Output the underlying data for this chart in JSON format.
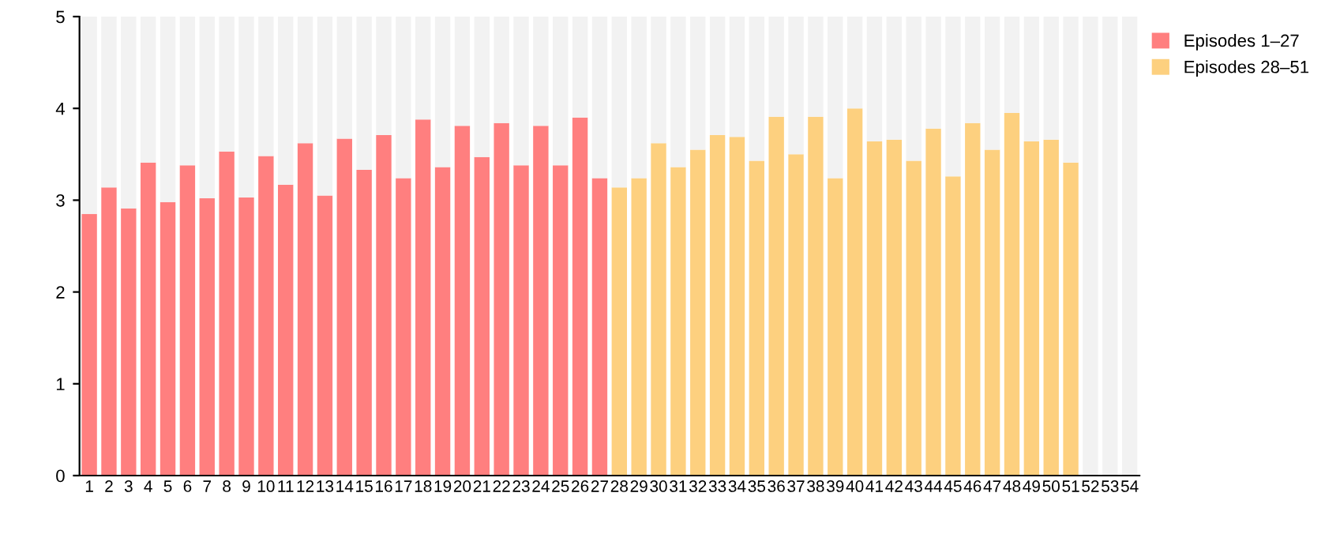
{
  "chart_data": {
    "type": "bar",
    "stacked": true,
    "categories": [
      "1",
      "2",
      "3",
      "4",
      "5",
      "6",
      "7",
      "8",
      "9",
      "10",
      "11",
      "12",
      "13",
      "14",
      "15",
      "16",
      "17",
      "18",
      "19",
      "20",
      "21",
      "22",
      "23",
      "24",
      "25",
      "26",
      "27",
      "28",
      "29",
      "30",
      "31",
      "32",
      "33",
      "34",
      "35",
      "36",
      "37",
      "38",
      "39",
      "40",
      "41",
      "42",
      "43",
      "44",
      "45",
      "46",
      "47",
      "48",
      "49",
      "50",
      "51",
      "52",
      "53",
      "54"
    ],
    "series": [
      {
        "name": "Episodes 1–27",
        "color": "#ff7f7f",
        "values": [
          2.85,
          3.14,
          2.91,
          3.41,
          2.98,
          3.38,
          3.02,
          3.53,
          3.03,
          3.48,
          3.17,
          3.62,
          3.05,
          3.67,
          3.33,
          3.71,
          3.24,
          3.88,
          3.36,
          3.81,
          3.47,
          3.84,
          3.38,
          3.81,
          3.38,
          3.9,
          3.24,
          null,
          null,
          null,
          null,
          null,
          null,
          null,
          null,
          null,
          null,
          null,
          null,
          null,
          null,
          null,
          null,
          null,
          null,
          null,
          null,
          null,
          null,
          null,
          null,
          null,
          null,
          null
        ]
      },
      {
        "name": "Episodes 28–51",
        "color": "#fdd07f",
        "values": [
          null,
          null,
          null,
          null,
          null,
          null,
          null,
          null,
          null,
          null,
          null,
          null,
          null,
          null,
          null,
          null,
          null,
          null,
          null,
          null,
          null,
          null,
          null,
          null,
          null,
          null,
          null,
          3.14,
          3.24,
          3.62,
          3.36,
          3.55,
          3.71,
          3.69,
          3.43,
          3.91,
          3.5,
          3.91,
          3.24,
          4.0,
          3.64,
          3.66,
          3.43,
          3.78,
          3.26,
          3.84,
          3.55,
          3.95,
          3.64,
          3.66,
          3.41,
          null,
          null,
          null
        ]
      },
      {
        "color": "#f2f2f2",
        "values": [
          2.15,
          1.86,
          2.09,
          1.59,
          2.02,
          1.62,
          1.98,
          1.47,
          1.97,
          1.52,
          1.83,
          1.38,
          1.95,
          1.33,
          1.67,
          1.29,
          1.76,
          1.12,
          1.64,
          1.19,
          1.53,
          1.16,
          1.62,
          1.19,
          1.62,
          1.1,
          1.76,
          1.86,
          1.76,
          1.38,
          1.64,
          1.45,
          1.29,
          1.31,
          1.57,
          1.09,
          1.5,
          1.09,
          1.76,
          1.0,
          1.36,
          1.34,
          1.57,
          1.22,
          1.74,
          1.16,
          1.45,
          1.05,
          1.36,
          1.34,
          1.59,
          5,
          5,
          5
        ]
      }
    ],
    "ylim": [
      0,
      5
    ],
    "yticks": [
      0,
      1,
      2,
      3,
      4,
      5
    ],
    "grid": false,
    "legend": "top right"
  }
}
